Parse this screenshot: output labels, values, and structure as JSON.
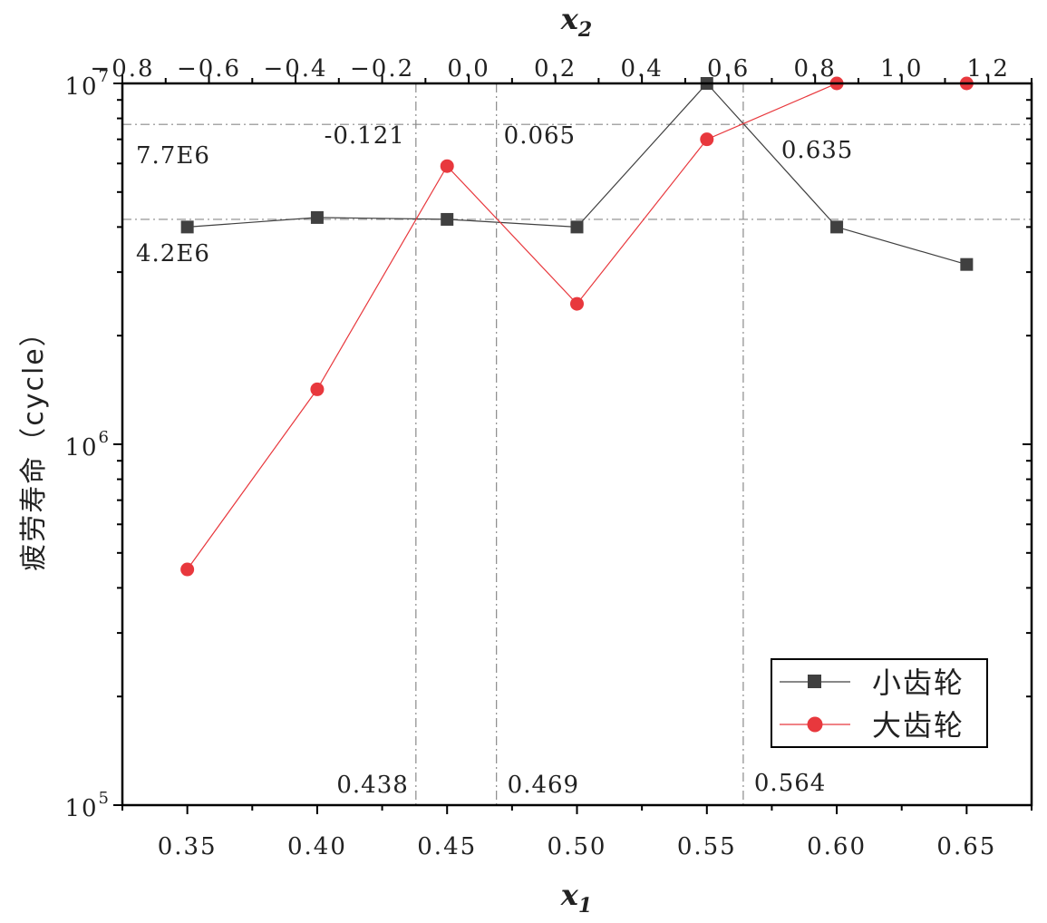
{
  "chart_data": {
    "type": "line",
    "xlabel": "x",
    "xlabel_sub": "1",
    "x2label": "x",
    "x2label_sub": "2",
    "ylabel": "疲劳寿命（cycle）",
    "y_scale": "log",
    "xlim": [
      0.325,
      0.675
    ],
    "x2lim": [
      -0.8,
      1.3
    ],
    "ylim": [
      100000,
      10000000
    ],
    "x_ticks": [
      "0.35",
      "0.40",
      "0.45",
      "0.50",
      "0.55",
      "0.60",
      "0.65"
    ],
    "x2_ticks": [
      "−0.8",
      "−0.6",
      "−0.4",
      "−0.2",
      "0.0",
      "0.2",
      "0.4",
      "0.6",
      "0.8",
      "1.0",
      "1.2"
    ],
    "y_ticks": [
      {
        "base": "10",
        "exp": "5"
      },
      {
        "base": "10",
        "exp": "6"
      },
      {
        "base": "10",
        "exp": "7"
      }
    ],
    "x": [
      0.35,
      0.4,
      0.45,
      0.5,
      0.55,
      0.6,
      0.65
    ],
    "series": [
      {
        "name": "小齿轮",
        "color": "#404040",
        "marker": "square",
        "values": [
          4000000,
          4250000,
          4200000,
          4000000,
          10000000,
          4000000,
          3150000
        ]
      },
      {
        "name": "大齿轮",
        "color": "#e8383d",
        "marker": "circle",
        "values": [
          450000,
          1420000,
          5900000,
          2450000,
          7000000,
          10000000,
          10000000
        ]
      }
    ],
    "ref_lines": {
      "vertical_x1": [
        0.438,
        0.469,
        0.564
      ],
      "horizontal_y": [
        7700000,
        4200000
      ]
    },
    "annotations": {
      "v1_bottom": "0.438",
      "v2_bottom": "0.469",
      "v3_bottom": "0.564",
      "v1_top": "-0.121",
      "v2_top": "0.065",
      "v3_top": "0.635",
      "h1": "7.7E6",
      "h2": "4.2E6"
    },
    "legend_position": "bottom-right",
    "grid": false
  }
}
